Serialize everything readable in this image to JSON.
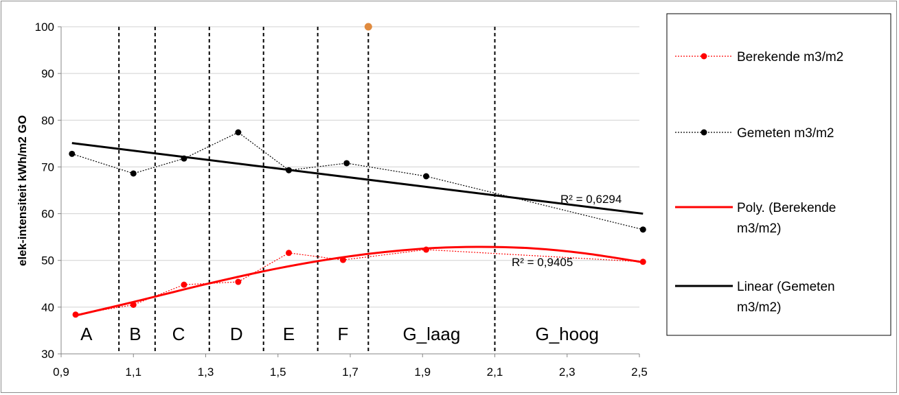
{
  "chart_data": {
    "type": "scatter",
    "xlabel": "",
    "ylabel": "elek-intensiteit kWh/m2 GO",
    "xlim": [
      0.9,
      2.5
    ],
    "ylim": [
      30,
      100
    ],
    "x_ticks": [
      "0,9",
      "1,1",
      "1,3",
      "1,5",
      "1,7",
      "1,9",
      "2,1",
      "2,3",
      "2,5"
    ],
    "x_tick_values": [
      0.9,
      1.1,
      1.3,
      1.5,
      1.7,
      1.9,
      2.1,
      2.3,
      2.5
    ],
    "y_ticks": [
      "30",
      "40",
      "50",
      "60",
      "70",
      "80",
      "90",
      "100"
    ],
    "y_tick_values": [
      30,
      40,
      50,
      60,
      70,
      80,
      90,
      100
    ],
    "grid": "horizontal",
    "legend_position": "right",
    "series": [
      {
        "name": "Berekende m3/m2",
        "style": "dotted-markers",
        "color": "#ff0000",
        "x": [
          0.94,
          1.1,
          1.24,
          1.39,
          1.53,
          1.68,
          1.91,
          2.51
        ],
        "y": [
          38.4,
          40.5,
          44.8,
          45.4,
          51.6,
          50.1,
          52.3,
          49.7
        ]
      },
      {
        "name": "Gemeten m3/m2",
        "style": "dotted-markers",
        "color": "#000000",
        "x": [
          0.93,
          1.1,
          1.24,
          1.39,
          1.53,
          1.69,
          1.91,
          2.51
        ],
        "y": [
          72.8,
          68.6,
          71.8,
          77.4,
          69.3,
          70.8,
          68.0,
          56.6
        ]
      },
      {
        "name": "Poly. (Berekende m3/m2)",
        "style": "trendline-polynomial",
        "color": "#ff0000",
        "r2_label": "R² = 0,9405",
        "x": [
          0.94,
          1.1,
          1.3,
          1.5,
          1.7,
          1.9,
          2.05,
          2.2,
          2.35,
          2.51
        ],
        "y": [
          38.2,
          41.1,
          44.9,
          48.3,
          50.9,
          52.5,
          52.9,
          52.6,
          51.5,
          49.6
        ]
      },
      {
        "name": "Linear (Gemeten m3/m2)",
        "style": "trendline-linear",
        "color": "#000000",
        "r2_label": "R² = 0,6294",
        "x": [
          0.93,
          2.51
        ],
        "y": [
          75.1,
          60.0
        ]
      },
      {
        "name": "",
        "style": "marker",
        "color": "#e08b3f",
        "x": [
          1.75
        ],
        "y": [
          100
        ]
      }
    ],
    "band_dividers": [
      1.06,
      1.16,
      1.31,
      1.46,
      1.61,
      1.75,
      2.1
    ],
    "band_labels": [
      {
        "label": "A",
        "x": 0.97
      },
      {
        "label": "B",
        "x": 1.105
      },
      {
        "label": "C",
        "x": 1.225
      },
      {
        "label": "D",
        "x": 1.385
      },
      {
        "label": "E",
        "x": 1.53
      },
      {
        "label": "F",
        "x": 1.68
      },
      {
        "label": "G_laag",
        "x": 1.925
      },
      {
        "label": "G_hoog",
        "x": 2.3
      }
    ]
  }
}
